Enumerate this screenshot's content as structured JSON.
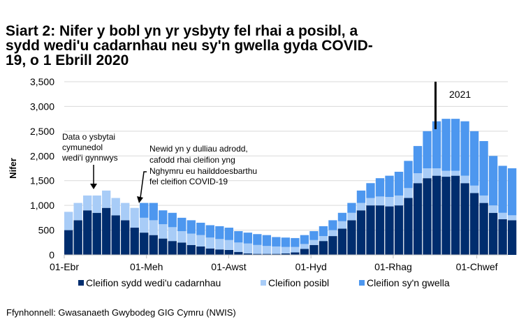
{
  "title_lines": [
    "Siart 2: Nifer y bobl yn yr ysbyty fel rhai a posibl, a",
    "sydd wedi'u cadarnhau neu sy'n gwella gyda COVID-",
    "19, o 1 Ebrill 2020"
  ],
  "source": "Ffynhonnell: Gwasanaeth Gwybodeg GIG Cymru (NWIS)",
  "chart_data": {
    "type": "bar",
    "stacked": true,
    "title": "Siart 2: Nifer y bobl yn yr ysbyty fel rhai a posibl, a sydd wedi'u cadarnhau neu sy'n gwella gyda COVID-19, o 1 Ebrill 2020",
    "ylabel": "Nifer",
    "xlabel": "",
    "ylim": [
      0,
      3500
    ],
    "yticks": [
      "0",
      "500",
      "1,000",
      "1,500",
      "2,000",
      "2,500",
      "3,000",
      "3,500"
    ],
    "ytick_values": [
      0,
      500,
      1000,
      1500,
      2000,
      2500,
      3000,
      3500
    ],
    "xticks": [
      {
        "label": "01-Ebr",
        "date": "2020-04-01"
      },
      {
        "label": "01-Meh",
        "date": "2020-06-01"
      },
      {
        "label": "01-Awst",
        "date": "2020-08-01"
      },
      {
        "label": "01-Hyd",
        "date": "2020-10-01"
      },
      {
        "label": "01-Rhag",
        "date": "2020-12-01"
      },
      {
        "label": "01-Chwef",
        "date": "2021-02-01"
      }
    ],
    "grid": true,
    "legend_position": "bottom",
    "x": [
      "2020-04-01",
      "2020-04-08",
      "2020-04-15",
      "2020-04-22",
      "2020-04-29",
      "2020-05-06",
      "2020-05-13",
      "2020-05-20",
      "2020-05-27",
      "2020-06-03",
      "2020-06-10",
      "2020-06-17",
      "2020-06-24",
      "2020-07-01",
      "2020-07-08",
      "2020-07-15",
      "2020-07-22",
      "2020-07-29",
      "2020-08-05",
      "2020-08-12",
      "2020-08-19",
      "2020-08-26",
      "2020-09-02",
      "2020-09-09",
      "2020-09-16",
      "2020-09-23",
      "2020-09-30",
      "2020-10-07",
      "2020-10-14",
      "2020-10-21",
      "2020-10-28",
      "2020-11-04",
      "2020-11-11",
      "2020-11-18",
      "2020-11-25",
      "2020-12-02",
      "2020-12-09",
      "2020-12-16",
      "2020-12-23",
      "2020-12-30",
      "2021-01-06",
      "2021-01-13",
      "2021-01-20",
      "2021-01-27",
      "2021-02-03",
      "2021-02-10",
      "2021-02-17",
      "2021-02-24"
    ],
    "series": [
      {
        "name": "Cleifion sydd wedi'u cadarnhau",
        "color": "#002d6e",
        "values": [
          500,
          700,
          900,
          850,
          950,
          800,
          700,
          550,
          450,
          400,
          330,
          280,
          250,
          200,
          170,
          130,
          110,
          100,
          60,
          30,
          20,
          20,
          20,
          30,
          50,
          120,
          200,
          280,
          380,
          530,
          700,
          900,
          1000,
          1000,
          980,
          1000,
          1150,
          1450,
          1550,
          1600,
          1580,
          1600,
          1450,
          1250,
          1050,
          850,
          720,
          700
        ]
      },
      {
        "name": "Cleifion posibl",
        "color": "#a8ccf7",
        "values": [
          370,
          350,
          300,
          350,
          350,
          350,
          350,
          400,
          300,
          300,
          290,
          280,
          230,
          230,
          230,
          220,
          210,
          200,
          190,
          200,
          180,
          160,
          150,
          130,
          110,
          100,
          100,
          100,
          120,
          150,
          150,
          150,
          150,
          180,
          190,
          200,
          200,
          200,
          200,
          150,
          120,
          100,
          150,
          150,
          150,
          150,
          130,
          100
        ]
      },
      {
        "name": "Cleifion sy'n gwella",
        "color": "#4d97ef",
        "values": [
          0,
          0,
          0,
          0,
          0,
          0,
          0,
          0,
          300,
          350,
          280,
          290,
          270,
          270,
          250,
          250,
          260,
          250,
          230,
          220,
          220,
          220,
          190,
          190,
          180,
          180,
          180,
          200,
          200,
          170,
          200,
          250,
          300,
          370,
          430,
          480,
          550,
          550,
          750,
          950,
          1050,
          1050,
          1100,
          1100,
          1100,
          1000,
          950,
          950
        ]
      }
    ],
    "annotations": [
      {
        "text_lines": [
          "Data o ysbytai",
          "cymunedol",
          "wedi'i gynnwys"
        ],
        "date": "2020-04-23"
      },
      {
        "text_lines": [
          "Newid yn y dulliau adrodd,",
          "cafodd rhai cleifion yng",
          "Nghymru eu hailddoesbarthu",
          "fel cleifion COVID-19"
        ],
        "date": "2020-05-25"
      },
      {
        "text_lines": [
          "2021"
        ],
        "date": "2021-01-01"
      }
    ]
  }
}
